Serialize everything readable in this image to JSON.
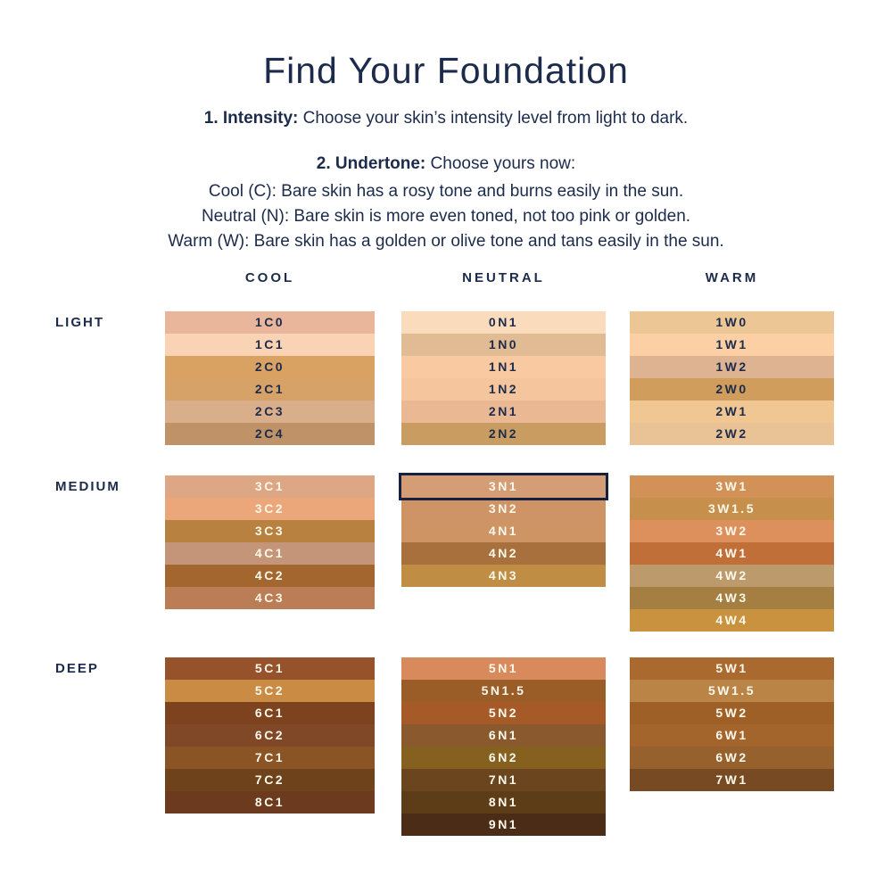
{
  "page": {
    "background": "#ffffff",
    "text_color": "#1c2b4c"
  },
  "header": {
    "title": "Find Your Foundation",
    "step1_label": "1. Intensity:",
    "step1_text": "Choose your skin’s intensity level from light to dark.",
    "step2_label": "2. Undertone:",
    "step2_text": "Choose yours now:",
    "undertone_lines": [
      "Cool (C): Bare skin has a rosy tone and burns easily in the sun.",
      "Neutral (N): Bare skin is more even toned, not too pink or golden.",
      "Warm (W): Bare skin has a golden or olive tone and tans easily in the sun."
    ]
  },
  "chart": {
    "column_headers": [
      "COOL",
      "NEUTRAL",
      "WARM"
    ],
    "selected_shade": "3N1",
    "selection_border_color": "#15213f",
    "sections": [
      {
        "intensity": "LIGHT",
        "label_color": "#1c2b4c",
        "columns": [
          {
            "undertone": "COOL",
            "swatches": [
              {
                "code": "1C0",
                "color": "#e9b69c"
              },
              {
                "code": "1C1",
                "color": "#fad3b4"
              },
              {
                "code": "2C0",
                "color": "#d9a263"
              },
              {
                "code": "2C1",
                "color": "#d7a268"
              },
              {
                "code": "2C3",
                "color": "#d9ae8b"
              },
              {
                "code": "2C4",
                "color": "#bf9268"
              }
            ]
          },
          {
            "undertone": "NEUTRAL",
            "swatches": [
              {
                "code": "0N1",
                "color": "#fadcbc"
              },
              {
                "code": "1N0",
                "color": "#e0bb94"
              },
              {
                "code": "1N1",
                "color": "#f9c9a1"
              },
              {
                "code": "1N2",
                "color": "#f5c59d"
              },
              {
                "code": "2N1",
                "color": "#ebb894"
              },
              {
                "code": "2N2",
                "color": "#c99d61"
              }
            ]
          },
          {
            "undertone": "WARM",
            "swatches": [
              {
                "code": "1W0",
                "color": "#ecc795"
              },
              {
                "code": "1W1",
                "color": "#fccfa4"
              },
              {
                "code": "1W2",
                "color": "#ddb391"
              },
              {
                "code": "2W0",
                "color": "#d09d5c"
              },
              {
                "code": "2W1",
                "color": "#f0c693"
              },
              {
                "code": "2W2",
                "color": "#e9c295"
              }
            ]
          }
        ]
      },
      {
        "intensity": "MEDIUM",
        "label_color": "#1c2b4c",
        "columns": [
          {
            "undertone": "COOL",
            "swatches": [
              {
                "code": "3C1",
                "color": "#dda684"
              },
              {
                "code": "3C2",
                "color": "#eba77a"
              },
              {
                "code": "3C3",
                "color": "#b9813f"
              },
              {
                "code": "4C1",
                "color": "#c59579"
              },
              {
                "code": "4C2",
                "color": "#a4662f"
              },
              {
                "code": "4C3",
                "color": "#bb7d55"
              }
            ]
          },
          {
            "undertone": "NEUTRAL",
            "swatches": [
              {
                "code": "3N1",
                "color": "#d49d76"
              },
              {
                "code": "3N2",
                "color": "#cf9465"
              },
              {
                "code": "4N1",
                "color": "#cf9463"
              },
              {
                "code": "4N2",
                "color": "#a8703d"
              },
              {
                "code": "4N3",
                "color": "#c08d44"
              }
            ]
          },
          {
            "undertone": "WARM",
            "swatches": [
              {
                "code": "3W1",
                "color": "#d29257"
              },
              {
                "code": "3W1.5",
                "color": "#c68f4c"
              },
              {
                "code": "3W2",
                "color": "#dd8f5c"
              },
              {
                "code": "4W1",
                "color": "#c06f38"
              },
              {
                "code": "4W2",
                "color": "#bd9a6b"
              },
              {
                "code": "4W3",
                "color": "#a57f42"
              },
              {
                "code": "4W4",
                "color": "#c8923f"
              }
            ]
          }
        ]
      },
      {
        "intensity": "DEEP",
        "label_color": "#1c2b4c",
        "columns": [
          {
            "undertone": "COOL",
            "swatches": [
              {
                "code": "5C1",
                "color": "#96522a"
              },
              {
                "code": "5C2",
                "color": "#ca8c44"
              },
              {
                "code": "6C1",
                "color": "#7c431e"
              },
              {
                "code": "6C2",
                "color": "#814827"
              },
              {
                "code": "7C1",
                "color": "#8a5424"
              },
              {
                "code": "7C2",
                "color": "#6e421a"
              },
              {
                "code": "8C1",
                "color": "#6c3a1f"
              }
            ]
          },
          {
            "undertone": "NEUTRAL",
            "swatches": [
              {
                "code": "5N1",
                "color": "#d98a5d"
              },
              {
                "code": "5N1.5",
                "color": "#9a5d28"
              },
              {
                "code": "5N2",
                "color": "#a65a28"
              },
              {
                "code": "6N1",
                "color": "#8a5a2e"
              },
              {
                "code": "6N2",
                "color": "#85601f"
              },
              {
                "code": "7N1",
                "color": "#6a451e"
              },
              {
                "code": "8N1",
                "color": "#5d3d18"
              },
              {
                "code": "9N1",
                "color": "#4a2c17"
              }
            ]
          },
          {
            "undertone": "WARM",
            "swatches": [
              {
                "code": "5W1",
                "color": "#a9692f"
              },
              {
                "code": "5W1.5",
                "color": "#bb8447"
              },
              {
                "code": "5W2",
                "color": "#9f6028"
              },
              {
                "code": "6W1",
                "color": "#a4652c"
              },
              {
                "code": "6W2",
                "color": "#96612c"
              },
              {
                "code": "7W1",
                "color": "#774a23"
              }
            ]
          }
        ]
      }
    ],
    "light_row_label_text_color": "#1c2b4c",
    "dark_row_label_text_color": "#fdf8ec"
  }
}
